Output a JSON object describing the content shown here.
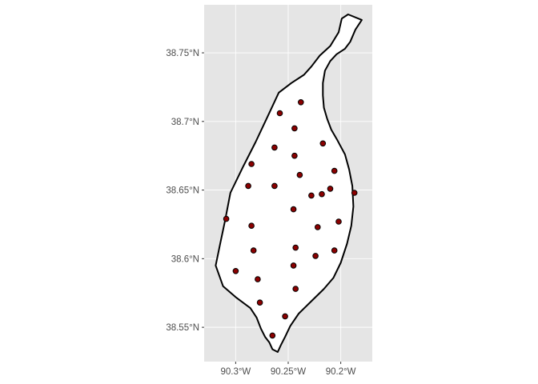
{
  "chart_data": {
    "type": "scatter",
    "projection": "geographic",
    "grid": true,
    "title": "",
    "xlabel": "",
    "ylabel": "",
    "xlim": [
      -90.33,
      -90.17
    ],
    "ylim": [
      38.525,
      38.785
    ],
    "x_ticks": [
      {
        "value": -90.3,
        "label": "90.3°W"
      },
      {
        "value": -90.25,
        "label": "90.25°W"
      },
      {
        "value": -90.2,
        "label": "90.2°W"
      }
    ],
    "y_ticks": [
      {
        "value": 38.75,
        "label": "38.75°N"
      },
      {
        "value": 38.7,
        "label": "38.7°N"
      },
      {
        "value": 38.65,
        "label": "38.65°N"
      },
      {
        "value": 38.6,
        "label": "38.6°N"
      },
      {
        "value": 38.55,
        "label": "38.55°N"
      }
    ],
    "boundary": [
      [
        -90.18,
        38.774
      ],
      [
        -90.186,
        38.767
      ],
      [
        -90.191,
        38.758
      ],
      [
        -90.196,
        38.753
      ],
      [
        -90.204,
        38.749
      ],
      [
        -90.21,
        38.744
      ],
      [
        -90.215,
        38.737
      ],
      [
        -90.217,
        38.728
      ],
      [
        -90.217,
        38.719
      ],
      [
        -90.216,
        38.71
      ],
      [
        -90.213,
        38.702
      ],
      [
        -90.209,
        38.694
      ],
      [
        -90.203,
        38.686
      ],
      [
        -90.196,
        38.676
      ],
      [
        -90.192,
        38.665
      ],
      [
        -90.189,
        38.653
      ],
      [
        -90.188,
        38.638
      ],
      [
        -90.19,
        38.624
      ],
      [
        -90.194,
        38.611
      ],
      [
        -90.2,
        38.597
      ],
      [
        -90.207,
        38.586
      ],
      [
        -90.216,
        38.578
      ],
      [
        -90.228,
        38.569
      ],
      [
        -90.24,
        38.56
      ],
      [
        -90.248,
        38.551
      ],
      [
        -90.253,
        38.543
      ],
      [
        -90.257,
        38.537
      ],
      [
        -90.26,
        38.532
      ],
      [
        -90.265,
        38.534
      ],
      [
        -90.268,
        38.539
      ],
      [
        -90.272,
        38.543
      ],
      [
        -90.276,
        38.549
      ],
      [
        -90.28,
        38.557
      ],
      [
        -90.286,
        38.564
      ],
      [
        -90.3,
        38.572
      ],
      [
        -90.312,
        38.58
      ],
      [
        -90.319,
        38.595
      ],
      [
        -90.315,
        38.61
      ],
      [
        -90.31,
        38.628
      ],
      [
        -90.305,
        38.648
      ],
      [
        -90.293,
        38.667
      ],
      [
        -90.281,
        38.685
      ],
      [
        -90.27,
        38.703
      ],
      [
        -90.259,
        38.721
      ],
      [
        -90.247,
        38.728
      ],
      [
        -90.235,
        38.734
      ],
      [
        -90.228,
        38.74
      ],
      [
        -90.22,
        38.748
      ],
      [
        -90.21,
        38.755
      ],
      [
        -90.202,
        38.765
      ],
      [
        -90.199,
        38.775
      ],
      [
        -90.193,
        38.778
      ],
      [
        -90.18,
        38.774
      ]
    ],
    "points": [
      [
        -90.238,
        38.714
      ],
      [
        -90.258,
        38.706
      ],
      [
        -90.244,
        38.695
      ],
      [
        -90.217,
        38.684
      ],
      [
        -90.263,
        38.681
      ],
      [
        -90.244,
        38.675
      ],
      [
        -90.285,
        38.669
      ],
      [
        -90.206,
        38.664
      ],
      [
        -90.239,
        38.661
      ],
      [
        -90.263,
        38.653
      ],
      [
        -90.288,
        38.653
      ],
      [
        -90.21,
        38.651
      ],
      [
        -90.187,
        38.648
      ],
      [
        -90.218,
        38.647
      ],
      [
        -90.228,
        38.646
      ],
      [
        -90.245,
        38.636
      ],
      [
        -90.309,
        38.629
      ],
      [
        -90.202,
        38.627
      ],
      [
        -90.285,
        38.624
      ],
      [
        -90.222,
        38.623
      ],
      [
        -90.243,
        38.608
      ],
      [
        -90.283,
        38.606
      ],
      [
        -90.206,
        38.606
      ],
      [
        -90.224,
        38.602
      ],
      [
        -90.245,
        38.595
      ],
      [
        -90.3,
        38.591
      ],
      [
        -90.279,
        38.585
      ],
      [
        -90.243,
        38.578
      ],
      [
        -90.277,
        38.568
      ],
      [
        -90.253,
        38.558
      ],
      [
        -90.265,
        38.544
      ]
    ],
    "colors": {
      "panel_background": "#e5e5e5",
      "grid": "#ffffff",
      "boundary_fill": "#ffffff",
      "boundary_stroke": "#000000",
      "point_fill": "#8b0000",
      "point_stroke": "#000000",
      "tick_text": "#4d4d4d"
    }
  }
}
